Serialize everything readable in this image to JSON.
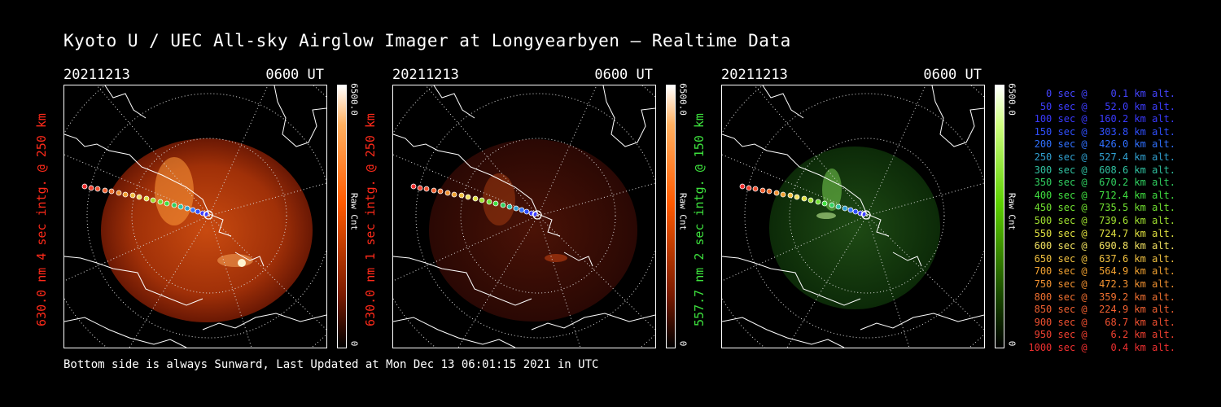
{
  "title": "Kyoto U / UEC All-sky Airglow Imager at Longyearbyen — Realtime Data",
  "footer": "Bottom side is always Sunward, Last Updated at Mon Dec 13 06:01:15 2021 in UTC",
  "panels": [
    {
      "date": "20211213",
      "time": "0600 UT",
      "ylabel": "630.0 nm 4 sec intg. @ 250 km",
      "label_color": "#ff2a1a",
      "cbar_max": "6500.0",
      "cbar_unit": "Raw Cnt",
      "cbar_min": "0",
      "cbar_color": "#ff5a00",
      "image_brightness": "high"
    },
    {
      "date": "20211213",
      "time": "0600 UT",
      "ylabel": "630.0 nm 1 sec intg. @ 250 km",
      "label_color": "#ff2a1a",
      "cbar_max": "6500.0",
      "cbar_unit": "Raw Cnt",
      "cbar_min": "0",
      "cbar_color": "#ff5a00",
      "image_brightness": "low"
    },
    {
      "date": "20211213",
      "time": "0600 UT",
      "ylabel": "557.7 nm 2 sec intg. @ 150 km",
      "label_color": "#3de03d",
      "cbar_max": "6500.0",
      "cbar_unit": "Raw Cnt",
      "cbar_min": "0",
      "cbar_color": "#5cd000",
      "image_brightness": "medium"
    }
  ],
  "legend": [
    {
      "text": "   0 sec @    0.1 km alt.",
      "color": "#4444ff"
    },
    {
      "text": "  50 sec @   52.0 km alt.",
      "color": "#3d3dff"
    },
    {
      "text": " 100 sec @  160.2 km alt.",
      "color": "#3a3aff"
    },
    {
      "text": " 150 sec @  303.8 km alt.",
      "color": "#3050ff"
    },
    {
      "text": " 200 sec @  426.0 km alt.",
      "color": "#3070ff"
    },
    {
      "text": " 250 sec @  527.4 km alt.",
      "color": "#30a0d0"
    },
    {
      "text": " 300 sec @  608.6 km alt.",
      "color": "#30c0a0"
    },
    {
      "text": " 350 sec @  670.2 km alt.",
      "color": "#30d060"
    },
    {
      "text": " 400 sec @  712.4 km alt.",
      "color": "#40e040"
    },
    {
      "text": " 450 sec @  735.5 km alt.",
      "color": "#70e030"
    },
    {
      "text": " 500 sec @  739.6 km alt.",
      "color": "#a0e030"
    },
    {
      "text": " 550 sec @  724.7 km alt.",
      "color": "#e0e040"
    },
    {
      "text": " 600 sec @  690.8 km alt.",
      "color": "#f0e060"
    },
    {
      "text": " 650 sec @  637.6 km alt.",
      "color": "#f0c040"
    },
    {
      "text": " 700 sec @  564.9 km alt.",
      "color": "#f0a030"
    },
    {
      "text": " 750 sec @  472.3 km alt.",
      "color": "#f09030"
    },
    {
      "text": " 800 sec @  359.2 km alt.",
      "color": "#f07030"
    },
    {
      "text": " 850 sec @  224.9 km alt.",
      "color": "#f06030"
    },
    {
      "text": " 900 sec @   68.7 km alt.",
      "color": "#f05030"
    },
    {
      "text": " 950 sec @    6.2 km alt.",
      "color": "#f04030"
    },
    {
      "text": "1000 sec @    0.4 km alt.",
      "color": "#f03030"
    }
  ]
}
